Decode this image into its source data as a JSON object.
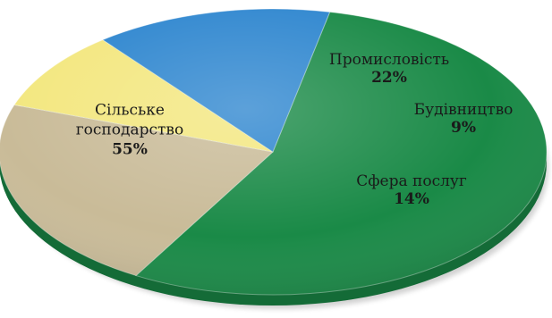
{
  "chart_data": {
    "type": "pie",
    "style": "3d-oval",
    "legend": "none",
    "slices": [
      {
        "label_lines": [
          "Сільське",
          "господарство"
        ],
        "value": 55,
        "value_text": "55%",
        "color": "#1a8a47"
      },
      {
        "label_lines": [
          "Промисловість"
        ],
        "value": 22,
        "value_text": "22%",
        "color": "#c9bb98"
      },
      {
        "label_lines": [
          "Будівництво"
        ],
        "value": 9,
        "value_text": "9%",
        "color": "#f3e77f"
      },
      {
        "label_lines": [
          "Сфера послуг"
        ],
        "value": 14,
        "value_text": "14%",
        "color": "#2e86cf"
      }
    ],
    "edge_color": "#146b37"
  }
}
